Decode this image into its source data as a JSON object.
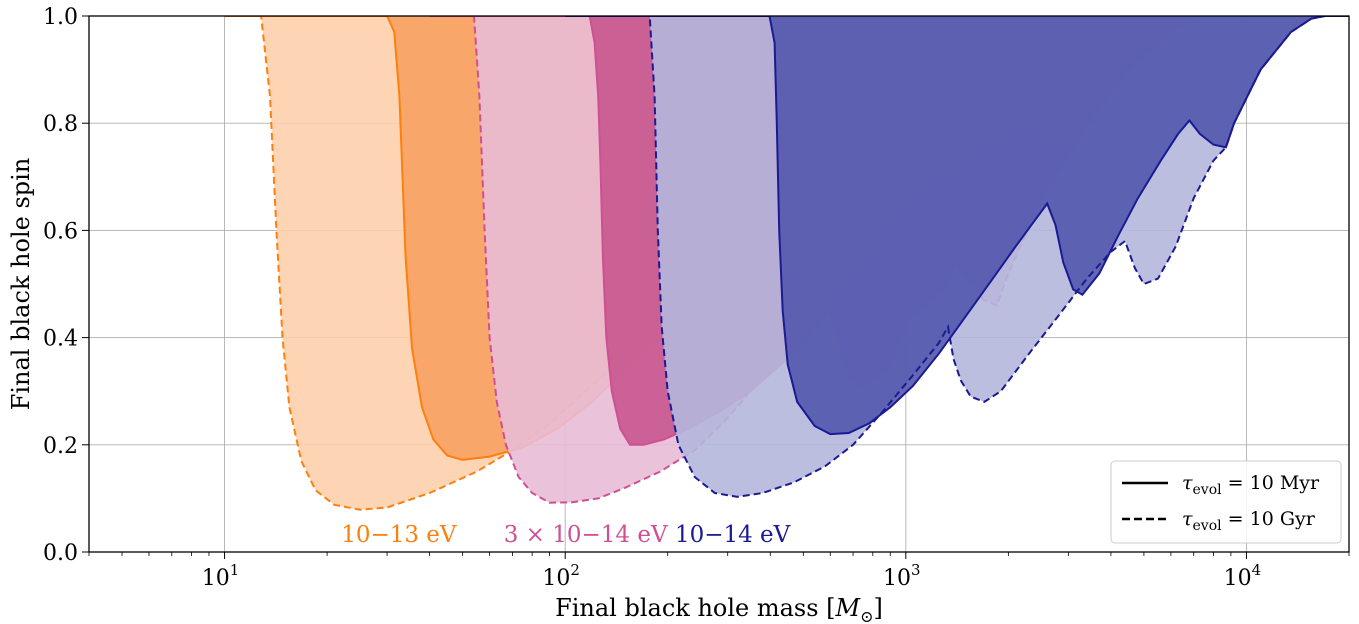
{
  "chart_data": {
    "type": "area",
    "xlabel": "Final black hole mass [M⊙]",
    "ylabel": "Final black hole spin",
    "xscale": "log",
    "xlim": [
      4,
      20000
    ],
    "ylim": [
      0.0,
      1.0
    ],
    "grid": true,
    "x_ticks": [
      {
        "value": 10,
        "base": "10",
        "exp": "1"
      },
      {
        "value": 100,
        "base": "10",
        "exp": "2"
      },
      {
        "value": 1000,
        "base": "10",
        "exp": "3"
      },
      {
        "value": 10000,
        "base": "10",
        "exp": "4"
      }
    ],
    "y_ticks": [
      {
        "value": 0.0,
        "label": "0.0"
      },
      {
        "value": 0.2,
        "label": "0.2"
      },
      {
        "value": 0.4,
        "label": "0.4"
      },
      {
        "value": 0.6,
        "label": "0.6"
      },
      {
        "value": 0.8,
        "label": "0.8"
      },
      {
        "value": 1.0,
        "label": "1.0"
      }
    ],
    "legend": {
      "placement": "lower-right",
      "entries": [
        {
          "style": "solid",
          "label": "τevol = 10 Myr"
        },
        {
          "style": "dashed",
          "label": "τevol = 10 Gyr"
        }
      ]
    },
    "series": [
      {
        "name": "10−13 eV",
        "color": "#ff7f0e",
        "label_position": {
          "x": 22,
          "y": 0.035
        },
        "dashed_fill": "#fdd0ac",
        "solid_fill": "#f7a162",
        "dashed_boundary": [
          [
            10,
            1.0
          ],
          [
            12.8,
            1.0
          ],
          [
            13.6,
            0.85
          ],
          [
            14.2,
            0.6
          ],
          [
            14.8,
            0.4
          ],
          [
            15.5,
            0.27
          ],
          [
            16.8,
            0.17
          ],
          [
            18.5,
            0.115
          ],
          [
            21,
            0.088
          ],
          [
            25,
            0.079
          ],
          [
            30,
            0.083
          ],
          [
            40,
            0.11
          ],
          [
            55,
            0.15
          ],
          [
            70,
            0.19
          ],
          [
            90,
            0.24
          ],
          [
            115,
            0.3
          ],
          [
            140,
            0.35
          ],
          [
            160,
            0.39
          ],
          [
            185,
            0.45
          ],
          [
            200,
            0.52
          ],
          [
            210,
            0.56
          ],
          [
            222,
            0.5
          ],
          [
            240,
            0.42
          ],
          [
            260,
            0.39
          ],
          [
            300,
            0.405
          ],
          [
            350,
            0.44
          ],
          [
            400,
            0.46
          ],
          [
            440,
            0.45
          ],
          [
            500,
            0.5
          ],
          [
            600,
            0.58
          ],
          [
            700,
            0.65
          ],
          [
            780,
            0.69
          ],
          [
            1000,
            0.8
          ],
          [
            1300,
            0.9
          ],
          [
            1700,
            0.97
          ],
          [
            2000,
            1.0
          ]
        ],
        "solid_boundary": [
          [
            10,
            1.0
          ],
          [
            30,
            1.0
          ],
          [
            31.5,
            0.97
          ],
          [
            32.6,
            0.85
          ],
          [
            33.3,
            0.7
          ],
          [
            34,
            0.55
          ],
          [
            35.5,
            0.38
          ],
          [
            38,
            0.27
          ],
          [
            41,
            0.21
          ],
          [
            45,
            0.18
          ],
          [
            50,
            0.172
          ],
          [
            60,
            0.178
          ],
          [
            75,
            0.195
          ],
          [
            95,
            0.23
          ],
          [
            120,
            0.28
          ],
          [
            150,
            0.34
          ],
          [
            185,
            0.4
          ],
          [
            230,
            0.45
          ],
          [
            300,
            0.51
          ],
          [
            380,
            0.56
          ],
          [
            480,
            0.65
          ],
          [
            580,
            0.73
          ],
          [
            650,
            0.72
          ],
          [
            760,
            0.69
          ],
          [
            900,
            0.77
          ],
          [
            1100,
            0.86
          ],
          [
            1400,
            0.93
          ],
          [
            1800,
            0.985
          ],
          [
            2100,
            1.0
          ]
        ]
      },
      {
        "name": "3 × 10−14 eV",
        "color": "#d04f93",
        "label_position": {
          "x": 66,
          "y": 0.035
        },
        "dashed_fill": "#e8bcd6",
        "solid_fill": "#c8578e",
        "dashed_boundary": [
          [
            40,
            1.0
          ],
          [
            54,
            1.0
          ],
          [
            56,
            0.85
          ],
          [
            58,
            0.6
          ],
          [
            60,
            0.4
          ],
          [
            63,
            0.28
          ],
          [
            67,
            0.2
          ],
          [
            73,
            0.14
          ],
          [
            80,
            0.11
          ],
          [
            90,
            0.092
          ],
          [
            105,
            0.093
          ],
          [
            125,
            0.1
          ],
          [
            150,
            0.12
          ],
          [
            190,
            0.15
          ],
          [
            240,
            0.19
          ],
          [
            290,
            0.24
          ],
          [
            340,
            0.29
          ],
          [
            400,
            0.36
          ],
          [
            460,
            0.42
          ],
          [
            520,
            0.48
          ],
          [
            560,
            0.51
          ],
          [
            590,
            0.47
          ],
          [
            630,
            0.4
          ],
          [
            680,
            0.33
          ],
          [
            730,
            0.31
          ],
          [
            800,
            0.32
          ],
          [
            900,
            0.35
          ],
          [
            1000,
            0.43
          ],
          [
            1100,
            0.45
          ],
          [
            1300,
            0.49
          ],
          [
            1400,
            0.54
          ],
          [
            1550,
            0.5
          ],
          [
            1700,
            0.47
          ],
          [
            1850,
            0.46
          ],
          [
            2000,
            0.52
          ],
          [
            2500,
            0.66
          ],
          [
            3000,
            0.74
          ],
          [
            3500,
            0.81
          ],
          [
            4500,
            0.9
          ],
          [
            6000,
            0.97
          ],
          [
            7000,
            1.0
          ]
        ],
        "solid_boundary": [
          [
            40,
            1.0
          ],
          [
            118,
            1.0
          ],
          [
            122,
            0.95
          ],
          [
            125,
            0.85
          ],
          [
            127,
            0.72
          ],
          [
            129,
            0.55
          ],
          [
            132,
            0.4
          ],
          [
            137,
            0.3
          ],
          [
            145,
            0.23
          ],
          [
            155,
            0.2
          ],
          [
            170,
            0.2
          ],
          [
            195,
            0.21
          ],
          [
            230,
            0.23
          ],
          [
            280,
            0.26
          ],
          [
            350,
            0.3
          ],
          [
            430,
            0.35
          ],
          [
            530,
            0.41
          ],
          [
            650,
            0.48
          ],
          [
            780,
            0.55
          ],
          [
            900,
            0.6
          ],
          [
            1000,
            0.63
          ],
          [
            1200,
            0.68
          ],
          [
            1500,
            0.73
          ],
          [
            1900,
            0.77
          ],
          [
            2400,
            0.77
          ],
          [
            3000,
            0.74
          ],
          [
            3500,
            0.81
          ],
          [
            4500,
            0.9
          ],
          [
            6000,
            0.97
          ],
          [
            7000,
            1.0
          ]
        ]
      },
      {
        "name": "10−14 eV",
        "color": "#1a1a94",
        "label_position": {
          "x": 210,
          "y": 0.035
        },
        "dashed_fill": "#b4b7dc",
        "solid_fill": "#5356ad",
        "dashed_boundary": [
          [
            100,
            1.0
          ],
          [
            177,
            1.0
          ],
          [
            183,
            0.85
          ],
          [
            187,
            0.6
          ],
          [
            192,
            0.42
          ],
          [
            200,
            0.3
          ],
          [
            215,
            0.2
          ],
          [
            240,
            0.14
          ],
          [
            275,
            0.11
          ],
          [
            320,
            0.103
          ],
          [
            380,
            0.11
          ],
          [
            470,
            0.13
          ],
          [
            580,
            0.16
          ],
          [
            700,
            0.2
          ],
          [
            850,
            0.26
          ],
          [
            1050,
            0.33
          ],
          [
            1250,
            0.39
          ],
          [
            1330,
            0.42
          ],
          [
            1380,
            0.36
          ],
          [
            1450,
            0.32
          ],
          [
            1550,
            0.29
          ],
          [
            1700,
            0.28
          ],
          [
            1900,
            0.3
          ],
          [
            2300,
            0.37
          ],
          [
            2800,
            0.44
          ],
          [
            3400,
            0.51
          ],
          [
            4000,
            0.56
          ],
          [
            4400,
            0.58
          ],
          [
            4700,
            0.53
          ],
          [
            5000,
            0.5
          ],
          [
            5500,
            0.51
          ],
          [
            6200,
            0.57
          ],
          [
            7000,
            0.66
          ],
          [
            8000,
            0.73
          ],
          [
            8700,
            0.755
          ],
          [
            9200,
            0.8
          ],
          [
            11000,
            0.9
          ],
          [
            13500,
            0.97
          ],
          [
            15500,
            0.995
          ],
          [
            17000,
            1.0
          ],
          [
            20000,
            1.0
          ]
        ],
        "solid_boundary": [
          [
            100,
            1.0
          ],
          [
            398,
            1.0
          ],
          [
            412,
            0.95
          ],
          [
            418,
            0.8
          ],
          [
            425,
            0.6
          ],
          [
            435,
            0.45
          ],
          [
            450,
            0.35
          ],
          [
            480,
            0.28
          ],
          [
            540,
            0.235
          ],
          [
            600,
            0.22
          ],
          [
            680,
            0.222
          ],
          [
            780,
            0.24
          ],
          [
            900,
            0.27
          ],
          [
            1050,
            0.31
          ],
          [
            1250,
            0.37
          ],
          [
            1500,
            0.44
          ],
          [
            1800,
            0.51
          ],
          [
            2100,
            0.57
          ],
          [
            2400,
            0.62
          ],
          [
            2600,
            0.65
          ],
          [
            2750,
            0.61
          ],
          [
            2900,
            0.54
          ],
          [
            3100,
            0.49
          ],
          [
            3300,
            0.48
          ],
          [
            3700,
            0.52
          ],
          [
            4200,
            0.59
          ],
          [
            4800,
            0.66
          ],
          [
            5600,
            0.73
          ],
          [
            6300,
            0.78
          ],
          [
            6800,
            0.805
          ],
          [
            7300,
            0.78
          ],
          [
            8000,
            0.76
          ],
          [
            8700,
            0.755
          ],
          [
            9200,
            0.8
          ],
          [
            11000,
            0.9
          ],
          [
            13500,
            0.97
          ],
          [
            15500,
            0.995
          ],
          [
            17000,
            1.0
          ],
          [
            20000,
            1.0
          ]
        ]
      }
    ]
  }
}
